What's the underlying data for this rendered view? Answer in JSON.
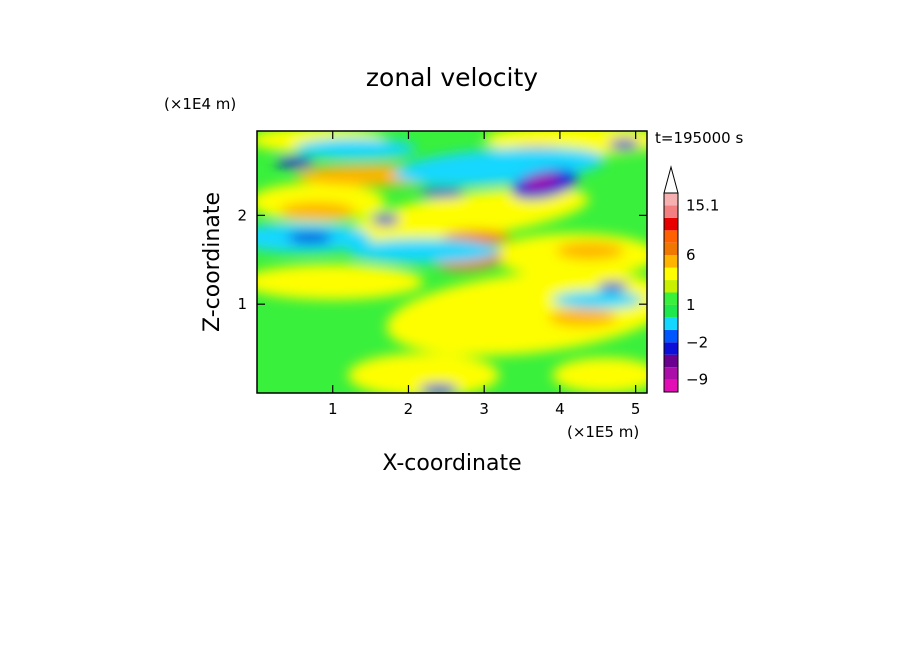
{
  "chart_data": {
    "type": "heatmap",
    "title": "zonal velocity",
    "xlabel": "X-coordinate",
    "ylabel": "Z-coordinate",
    "x_unit": "(×1E5 m)",
    "y_unit": "(×1E4 m)",
    "time_label": "t=195000 s",
    "xlim": [
      0,
      5.15
    ],
    "ylim": [
      0,
      2.95
    ],
    "xticks": [
      1,
      2,
      3,
      4,
      5
    ],
    "yticks": [
      1,
      2
    ],
    "colorbar": {
      "levels": [
        -12,
        -9,
        -6,
        -4,
        -2,
        -1,
        0,
        1,
        2,
        3,
        4,
        6,
        8,
        10,
        12.5,
        15.1
      ],
      "colors": [
        "#e20fb4",
        "#aa10a9",
        "#6a008f",
        "#0b0fd7",
        "#0057ff",
        "#14d7ff",
        "#1ee84e",
        "#39f03c",
        "#c8f000",
        "#fefe00",
        "#ffb400",
        "#f07800",
        "#ff6000",
        "#e80000",
        "#f28080",
        "#f7b0b0"
      ],
      "labels": [
        {
          "text": "15.1",
          "value": 15.1
        },
        {
          "text": "6",
          "value": 6
        },
        {
          "text": "1",
          "value": 1
        },
        {
          "text": "−2",
          "value": -2
        },
        {
          "text": "−9",
          "value": -9
        }
      ],
      "extend_max": true
    },
    "field_regions": [
      {
        "x": 3.7,
        "z": 2.35,
        "value": -9
      },
      {
        "x": 3.5,
        "z": 2.25,
        "value": -4
      },
      {
        "x": 0.35,
        "z": 2.6,
        "value": -4
      },
      {
        "x": 0.7,
        "z": 1.75,
        "value": -4
      },
      {
        "x": 1.6,
        "z": 2.0,
        "value": -4
      },
      {
        "x": 2.4,
        "z": 0.05,
        "value": -4
      },
      {
        "x": 1.7,
        "z": 2.4,
        "value": 6
      },
      {
        "x": 2.9,
        "z": 1.45,
        "value": 6
      },
      {
        "x": 2.75,
        "z": 1.75,
        "value": 8
      },
      {
        "x": 4.3,
        "z": 1.3,
        "value": 4
      },
      {
        "x": 2.9,
        "z": 0.8,
        "value": 3
      },
      {
        "x": 1.0,
        "z": 0.9,
        "value": 0
      }
    ]
  }
}
